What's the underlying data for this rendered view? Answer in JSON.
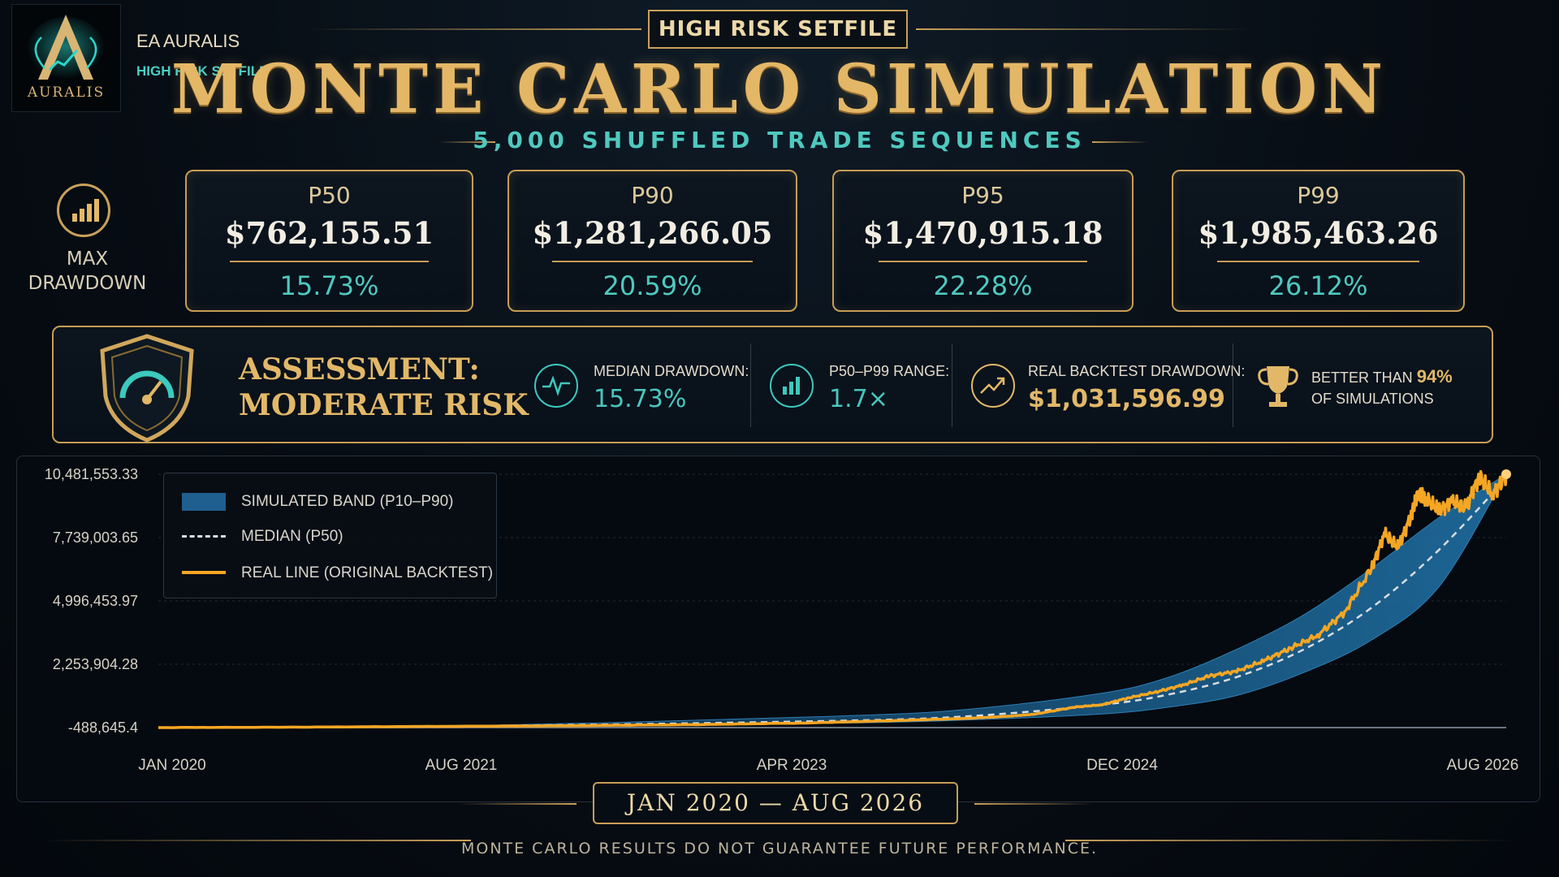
{
  "brand": {
    "logo_word": "AURALIS",
    "name": "EA AURALIS",
    "sub": "HIGH RISK SETFILE"
  },
  "header": {
    "badge": "HIGH RISK SETFILE",
    "title": "MONTE CARLO SIMULATION",
    "subtitle": "5,000 SHUFFLED TRADE SEQUENCES"
  },
  "max_drawdown": {
    "label_line1": "MAX",
    "label_line2": "DRAWDOWN",
    "icon": "bar-chart-icon"
  },
  "percentiles": [
    {
      "key": "P50",
      "value": "$762,155.51",
      "drawdown": "15.73%"
    },
    {
      "key": "P90",
      "value": "$1,281,266.05",
      "drawdown": "20.59%"
    },
    {
      "key": "P95",
      "value": "$1,470,915.18",
      "drawdown": "22.28%"
    },
    {
      "key": "P99",
      "value": "$1,985,463.26",
      "drawdown": "26.12%"
    }
  ],
  "assessment": {
    "line1": "ASSESSMENT:",
    "line2": "MODERATE RISK",
    "icon": "shield-gauge-icon",
    "stats": [
      {
        "label": "MEDIAN DRAWDOWN:",
        "value": "15.73%",
        "icon": "pulse-icon"
      },
      {
        "label": "P50–P99 RANGE:",
        "value": "1.7×",
        "icon": "bar-chart-icon"
      },
      {
        "label": "REAL BACKTEST DRAWDOWN:",
        "value": "$1,031,596.99",
        "icon": "trend-up-icon"
      }
    ],
    "better": {
      "prefix": "BETTER THAN",
      "percent": "94%",
      "suffix": "OF SIMULATIONS",
      "icon": "trophy-icon"
    }
  },
  "colors": {
    "gold": "#e2b868",
    "teal": "#4fc9bf",
    "band": "#1c5d8c",
    "real_line": "#f5a623",
    "median": "#d8dde2"
  },
  "chart_data": {
    "type": "line",
    "xlabel": "",
    "ylabel": "",
    "x_range": [
      "2020-01",
      "2026-08"
    ],
    "x_ticks": [
      "JAN 2020",
      "AUG 2021",
      "APR 2023",
      "DEC 2024",
      "AUG 2026"
    ],
    "ylim": [
      -488645.4,
      10481553.33
    ],
    "y_ticks": [
      "10,481,553.33",
      "7,739,003.65",
      "4,996,453.97",
      "2,253,904.28",
      "-488,645.4"
    ],
    "y_tick_values": [
      10481553.33,
      7739003.65,
      4996453.97,
      2253904.28,
      -488645.4
    ],
    "grid": true,
    "legend_position": "top-left",
    "legend": [
      {
        "name": "SIMULATED BAND (P10–P90)",
        "kind": "band"
      },
      {
        "name": "MEDIAN (P50)",
        "kind": "dashed"
      },
      {
        "name": "REAL LINE (ORIGINAL BACKTEST)",
        "kind": "line"
      }
    ],
    "x": [
      0,
      0.25,
      0.5,
      0.6,
      0.7,
      0.75,
      0.8,
      0.85,
      0.9,
      0.95,
      1.0
    ],
    "series": [
      {
        "name": "SIMULATED BAND (P10–P90)",
        "lower": [
          -488645,
          -430000,
          -300000,
          -160000,
          100000,
          400000,
          900000,
          1900000,
          3300000,
          5600000,
          10481553
        ],
        "upper": [
          -488645,
          -380000,
          0,
          300000,
          1000000,
          1700000,
          2900000,
          4400000,
          6400000,
          8600000,
          10481553
        ]
      },
      {
        "name": "MEDIAN (P50)",
        "values": [
          -488645,
          -410000,
          -200000,
          0,
          500000,
          950000,
          1700000,
          2900000,
          4700000,
          7200000,
          10300000
        ]
      },
      {
        "name": "REAL LINE (ORIGINAL BACKTEST)",
        "x": [
          0,
          0.1,
          0.2,
          0.3,
          0.4,
          0.48,
          0.55,
          0.6,
          0.63,
          0.65,
          0.68,
          0.7,
          0.72,
          0.74,
          0.76,
          0.78,
          0.8,
          0.82,
          0.84,
          0.86,
          0.88,
          0.9,
          0.91,
          0.92,
          0.93,
          0.935,
          0.94,
          0.95,
          0.96,
          0.97,
          0.98,
          0.99,
          1.0
        ],
        "values": [
          -488645,
          -470000,
          -440000,
          -410000,
          -360000,
          -290000,
          -180000,
          -90000,
          0,
          90000,
          400000,
          500000,
          800000,
          1050000,
          1350000,
          1750000,
          1950000,
          2400000,
          2950000,
          3500000,
          4500000,
          6400000,
          7900000,
          7300000,
          8800000,
          9700000,
          9500000,
          8900000,
          9300000,
          9000000,
          10400000,
          9600000,
          10481553
        ]
      }
    ]
  },
  "date_range": "JAN 2020 — AUG 2026",
  "disclaimer": "MONTE CARLO RESULTS DO NOT GUARANTEE FUTURE PERFORMANCE."
}
